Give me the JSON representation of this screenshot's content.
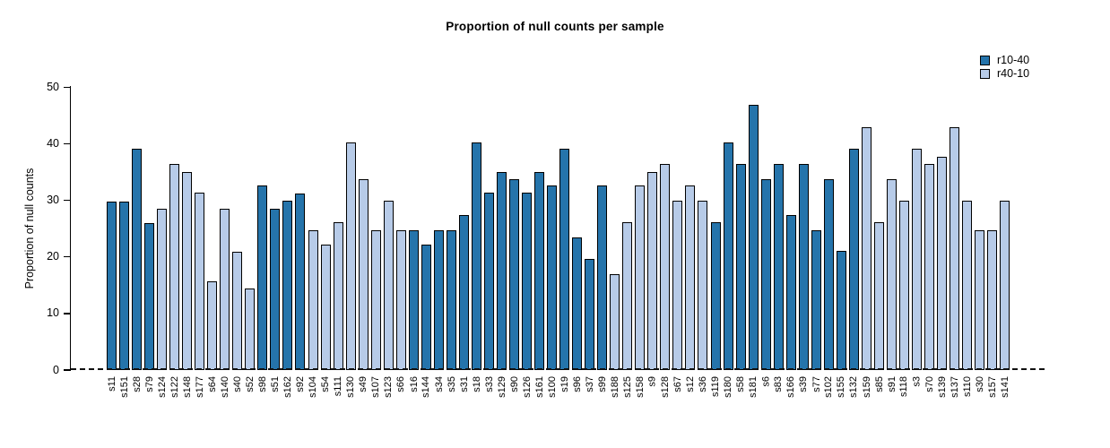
{
  "chart_data": {
    "type": "bar",
    "title": "Proportion of null counts per sample",
    "xlabel": "",
    "ylabel": "Proportion of null counts",
    "ylim": [
      0,
      50
    ],
    "yticks": [
      0,
      10,
      20,
      30,
      40,
      50
    ],
    "grid": false,
    "legend_position": "top-right",
    "zero_line": "dashed",
    "legend": [
      {
        "label": "r10-40",
        "color": "#2574ab"
      },
      {
        "label": "r40-10",
        "color": "#b7cbe8"
      }
    ],
    "bars": [
      {
        "label": "s11",
        "value": 29.8,
        "group": "r10-40"
      },
      {
        "label": "s151",
        "value": 29.8,
        "group": "r10-40"
      },
      {
        "label": "s28",
        "value": 39.1,
        "group": "r10-40"
      },
      {
        "label": "s79",
        "value": 26.0,
        "group": "r10-40"
      },
      {
        "label": "s124",
        "value": 28.6,
        "group": "r40-10"
      },
      {
        "label": "s122",
        "value": 36.5,
        "group": "r40-10"
      },
      {
        "label": "s148",
        "value": 35.1,
        "group": "r40-10"
      },
      {
        "label": "s177",
        "value": 31.3,
        "group": "r40-10"
      },
      {
        "label": "s64",
        "value": 15.7,
        "group": "r40-10"
      },
      {
        "label": "s140",
        "value": 28.6,
        "group": "r40-10"
      },
      {
        "label": "s40",
        "value": 20.9,
        "group": "r40-10"
      },
      {
        "label": "s52",
        "value": 14.4,
        "group": "r40-10"
      },
      {
        "label": "s98",
        "value": 32.6,
        "group": "r10-40"
      },
      {
        "label": "s51",
        "value": 28.6,
        "group": "r10-40"
      },
      {
        "label": "s162",
        "value": 29.9,
        "group": "r10-40"
      },
      {
        "label": "s92",
        "value": 31.2,
        "group": "r10-40"
      },
      {
        "label": "s104",
        "value": 24.7,
        "group": "r40-10"
      },
      {
        "label": "s54",
        "value": 22.2,
        "group": "r40-10"
      },
      {
        "label": "s111",
        "value": 26.2,
        "group": "r40-10"
      },
      {
        "label": "s130",
        "value": 40.3,
        "group": "r40-10"
      },
      {
        "label": "s49",
        "value": 33.8,
        "group": "r40-10"
      },
      {
        "label": "s107",
        "value": 24.7,
        "group": "r40-10"
      },
      {
        "label": "s123",
        "value": 29.9,
        "group": "r40-10"
      },
      {
        "label": "s66",
        "value": 24.7,
        "group": "r40-10"
      },
      {
        "label": "s16",
        "value": 24.7,
        "group": "r10-40"
      },
      {
        "label": "s144",
        "value": 22.2,
        "group": "r10-40"
      },
      {
        "label": "s34",
        "value": 24.7,
        "group": "r10-40"
      },
      {
        "label": "s35",
        "value": 24.7,
        "group": "r10-40"
      },
      {
        "label": "s31",
        "value": 27.4,
        "group": "r10-40"
      },
      {
        "label": "s18",
        "value": 40.3,
        "group": "r10-40"
      },
      {
        "label": "s33",
        "value": 31.3,
        "group": "r10-40"
      },
      {
        "label": "s129",
        "value": 35.1,
        "group": "r10-40"
      },
      {
        "label": "s90",
        "value": 33.8,
        "group": "r10-40"
      },
      {
        "label": "s126",
        "value": 31.3,
        "group": "r10-40"
      },
      {
        "label": "s161",
        "value": 35.1,
        "group": "r10-40"
      },
      {
        "label": "s100",
        "value": 32.6,
        "group": "r10-40"
      },
      {
        "label": "s19",
        "value": 39.1,
        "group": "r10-40"
      },
      {
        "label": "s96",
        "value": 23.4,
        "group": "r10-40"
      },
      {
        "label": "s37",
        "value": 19.6,
        "group": "r10-40"
      },
      {
        "label": "s99",
        "value": 32.6,
        "group": "r10-40"
      },
      {
        "label": "s188",
        "value": 17.0,
        "group": "r40-10"
      },
      {
        "label": "s125",
        "value": 26.2,
        "group": "r40-10"
      },
      {
        "label": "s158",
        "value": 32.6,
        "group": "r40-10"
      },
      {
        "label": "s9",
        "value": 35.1,
        "group": "r40-10"
      },
      {
        "label": "s128",
        "value": 36.5,
        "group": "r40-10"
      },
      {
        "label": "s67",
        "value": 29.9,
        "group": "r40-10"
      },
      {
        "label": "s12",
        "value": 32.6,
        "group": "r40-10"
      },
      {
        "label": "s36",
        "value": 29.9,
        "group": "r40-10"
      },
      {
        "label": "s119",
        "value": 26.2,
        "group": "r10-40"
      },
      {
        "label": "s180",
        "value": 40.3,
        "group": "r10-40"
      },
      {
        "label": "s58",
        "value": 36.5,
        "group": "r10-40"
      },
      {
        "label": "s181",
        "value": 46.9,
        "group": "r10-40"
      },
      {
        "label": "s6",
        "value": 33.8,
        "group": "r10-40"
      },
      {
        "label": "s83",
        "value": 36.5,
        "group": "r10-40"
      },
      {
        "label": "s166",
        "value": 27.4,
        "group": "r10-40"
      },
      {
        "label": "s39",
        "value": 36.5,
        "group": "r10-40"
      },
      {
        "label": "s77",
        "value": 24.7,
        "group": "r10-40"
      },
      {
        "label": "s102",
        "value": 33.8,
        "group": "r10-40"
      },
      {
        "label": "s155",
        "value": 21.0,
        "group": "r10-40"
      },
      {
        "label": "s132",
        "value": 39.1,
        "group": "r10-40"
      },
      {
        "label": "s159",
        "value": 42.9,
        "group": "r40-10"
      },
      {
        "label": "s85",
        "value": 26.2,
        "group": "r40-10"
      },
      {
        "label": "s91",
        "value": 33.8,
        "group": "r40-10"
      },
      {
        "label": "s118",
        "value": 29.9,
        "group": "r40-10"
      },
      {
        "label": "s3",
        "value": 39.1,
        "group": "r40-10"
      },
      {
        "label": "s70",
        "value": 36.5,
        "group": "r40-10"
      },
      {
        "label": "s139",
        "value": 37.7,
        "group": "r40-10"
      },
      {
        "label": "s137",
        "value": 42.9,
        "group": "r40-10"
      },
      {
        "label": "s110",
        "value": 29.9,
        "group": "r40-10"
      },
      {
        "label": "s30",
        "value": 24.7,
        "group": "r40-10"
      },
      {
        "label": "s157",
        "value": 24.7,
        "group": "r40-10"
      },
      {
        "label": "s141",
        "value": 29.9,
        "group": "r40-10"
      }
    ]
  }
}
